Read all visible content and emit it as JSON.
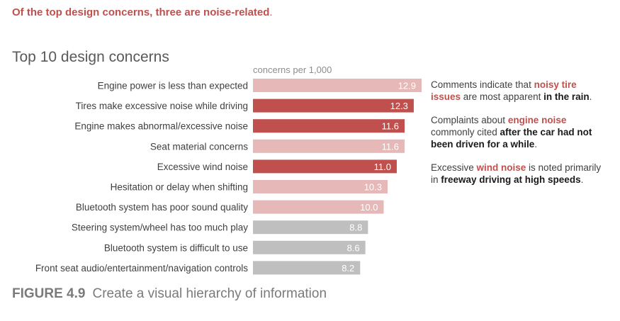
{
  "headline": {
    "text": "Of the top design concerns, three are noise-related",
    "period": "."
  },
  "chart_data": {
    "type": "bar",
    "orientation": "horizontal",
    "title": "Top 10 design concerns",
    "xlabel": "concerns per 1,000",
    "ylabel": "",
    "xlim": [
      0,
      12.9
    ],
    "grid": false,
    "categories": [
      "Engine power is less than expected",
      "Tires make excessive noise while driving",
      "Engine makes abnormal/excessive noise",
      "Seat material concerns",
      "Excessive wind noise",
      "Hesitation or delay when shifting",
      "Bluetooth system has poor sound quality",
      "Steering system/wheel has too much play",
      "Bluetooth system is difficult to use",
      "Front seat audio/entertainment/navigation controls"
    ],
    "values": [
      12.9,
      12.3,
      11.6,
      11.6,
      11.0,
      10.3,
      10.0,
      8.8,
      8.6,
      8.2
    ],
    "value_labels": [
      "12.9",
      "12.3",
      "11.6",
      "11.6",
      "11.0",
      "10.3",
      "10.0",
      "8.8",
      "8.6",
      "8.2"
    ],
    "bar_colors": [
      "#e6b8b7",
      "#c0504d",
      "#c0504d",
      "#e6b8b7",
      "#c0504d",
      "#e6b8b7",
      "#e6b8b7",
      "#bfbfbf",
      "#bfbfbf",
      "#bfbfbf"
    ]
  },
  "annotations": [
    {
      "parts": [
        {
          "text": "Comments indicate that ",
          "style": "normal"
        },
        {
          "text": "noisy tire issues",
          "style": "highlight"
        },
        {
          "text": " are most apparent ",
          "style": "normal"
        },
        {
          "text": "in the rain",
          "style": "bold"
        },
        {
          "text": ".",
          "style": "normal"
        }
      ]
    },
    {
      "parts": [
        {
          "text": "Complaints about ",
          "style": "normal"
        },
        {
          "text": "engine noise",
          "style": "highlight"
        },
        {
          "text": " commonly cited ",
          "style": "normal"
        },
        {
          "text": "after the car had not been driven for a while",
          "style": "bold"
        },
        {
          "text": ".",
          "style": "normal"
        }
      ]
    },
    {
      "parts": [
        {
          "text": "Excessive ",
          "style": "normal"
        },
        {
          "text": "wind noise",
          "style": "highlight"
        },
        {
          "text": " is noted primarily in ",
          "style": "normal"
        },
        {
          "text": "freeway driving at high speeds",
          "style": "bold"
        },
        {
          "text": ".",
          "style": "normal"
        }
      ]
    }
  ],
  "caption": {
    "figure": "FIGURE 4.9",
    "text": "Create a visual hierarchy of information"
  },
  "colors": {
    "accent": "#c0504d",
    "accent_light": "#e6b8b7",
    "neutral": "#bfbfbf"
  }
}
